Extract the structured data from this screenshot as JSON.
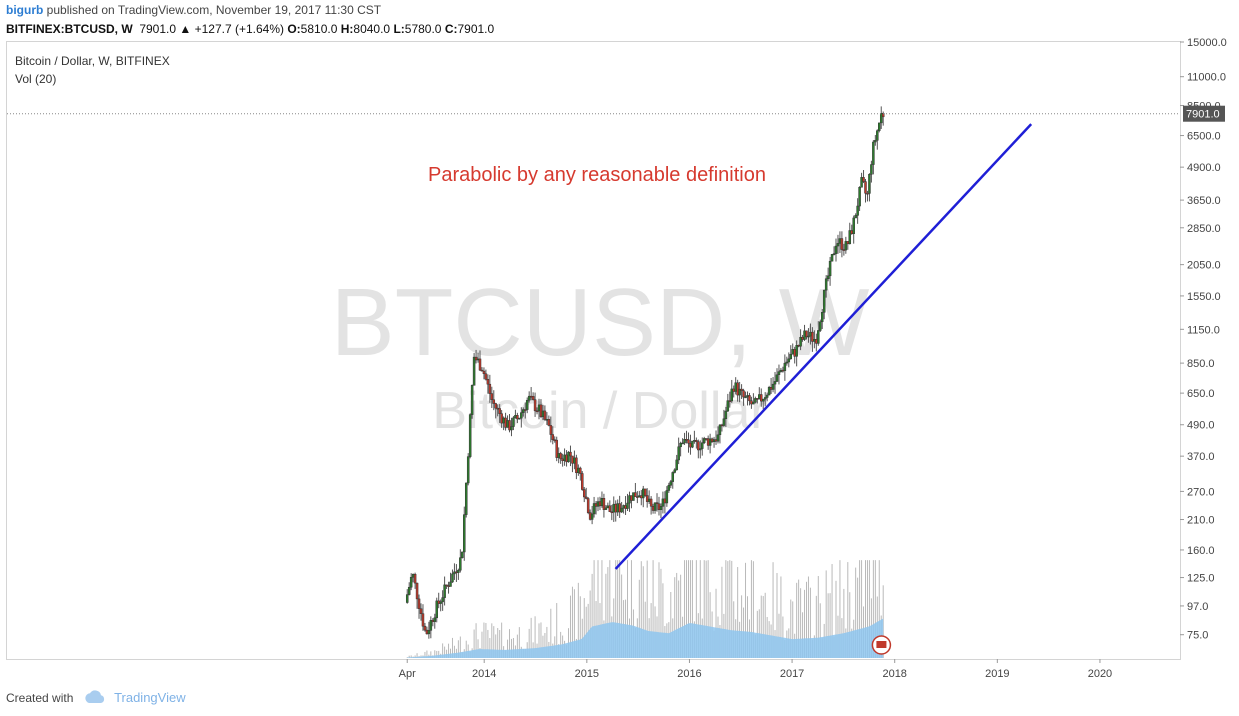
{
  "header": {
    "author": "bigurb",
    "published_text": "published on TradingView.com, November 19, 2017 11:30 CST",
    "symbol_line": "BITFINEX:BTCUSD, W",
    "last_price": "7901.0",
    "change": "▲ +127.7 (+1.64%)",
    "open_label": "O:",
    "open": "5810.0",
    "high_label": "H:",
    "high": "8040.0",
    "low_label": "L:",
    "low": "5780.0",
    "close_label": "C:",
    "close": "7901.0"
  },
  "footer": {
    "created_with": "Created with",
    "brand": "TradingView"
  },
  "colors": {
    "up": "#2d7a2d",
    "down": "#c0392b",
    "volume": "#8ec6ef",
    "trendline": "#1f1fd6",
    "annotation": "#d63a2f",
    "watermark": "#e3e3e3",
    "price_tag": "#555555"
  },
  "chart_data": {
    "type": "candlestick",
    "title": "Bitcoin / Dollar, W, BITFINEX",
    "indicator": "Vol (20)",
    "watermark_symbol": "BTCUSD, W",
    "watermark_name": "Bitcoin / Dollar",
    "annotation": "Parabolic by any reasonable definition",
    "last_price_label": "7901.0",
    "y_scale": "log",
    "ylim": [
      62,
      15000
    ],
    "y_ticks": [
      "15000.0",
      "11000.0",
      "8500.0",
      "6500.0",
      "4900.0",
      "3650.0",
      "2850.0",
      "2050.0",
      "1550.0",
      "1150.0",
      "850.0",
      "650.0",
      "490.0",
      "370.0",
      "270.0",
      "210.0",
      "160.0",
      "125.0",
      "97.0",
      "75.0"
    ],
    "x_ticks": [
      "Apr",
      "2014",
      "2015",
      "2016",
      "2017",
      "2018",
      "2019",
      "2020"
    ],
    "x_tick_dates": [
      2013.25,
      2014.0,
      2015.0,
      2016.0,
      2017.0,
      2018.0,
      2019.0,
      2020.0
    ],
    "xlim": [
      2009.35,
      2020.78
    ],
    "trendline": {
      "x": [
        2015.28,
        2019.33
      ],
      "y": [
        135,
        7200
      ]
    },
    "anchors": [
      [
        2013.25,
        100
      ],
      [
        2013.32,
        130
      ],
      [
        2013.45,
        75
      ],
      [
        2013.55,
        95
      ],
      [
        2013.65,
        115
      ],
      [
        2013.8,
        150
      ],
      [
        2013.88,
        500
      ],
      [
        2013.92,
        900
      ],
      [
        2014.0,
        820
      ],
      [
        2014.1,
        600
      ],
      [
        2014.25,
        480
      ],
      [
        2014.35,
        520
      ],
      [
        2014.45,
        620
      ],
      [
        2014.55,
        560
      ],
      [
        2014.65,
        480
      ],
      [
        2014.75,
        360
      ],
      [
        2014.85,
        380
      ],
      [
        2014.95,
        320
      ],
      [
        2015.05,
        220
      ],
      [
        2015.15,
        250
      ],
      [
        2015.25,
        225
      ],
      [
        2015.35,
        235
      ],
      [
        2015.45,
        260
      ],
      [
        2015.55,
        270
      ],
      [
        2015.65,
        230
      ],
      [
        2015.75,
        235
      ],
      [
        2015.85,
        320
      ],
      [
        2015.95,
        430
      ],
      [
        2016.05,
        400
      ],
      [
        2016.15,
        420
      ],
      [
        2016.3,
        440
      ],
      [
        2016.45,
        700
      ],
      [
        2016.55,
        620
      ],
      [
        2016.65,
        580
      ],
      [
        2016.75,
        640
      ],
      [
        2016.85,
        720
      ],
      [
        2016.95,
        850
      ],
      [
        2017.05,
        950
      ],
      [
        2017.15,
        1100
      ],
      [
        2017.25,
        1050
      ],
      [
        2017.35,
        1700
      ],
      [
        2017.45,
        2550
      ],
      [
        2017.55,
        2400
      ],
      [
        2017.62,
        3000
      ],
      [
        2017.7,
        4300
      ],
      [
        2017.75,
        3700
      ],
      [
        2017.8,
        5600
      ],
      [
        2017.85,
        6800
      ],
      [
        2017.89,
        7901
      ]
    ],
    "volume_profile": [
      [
        2013.25,
        0.01
      ],
      [
        2013.5,
        0.05
      ],
      [
        2013.75,
        0.12
      ],
      [
        2013.95,
        0.2
      ],
      [
        2014.2,
        0.18
      ],
      [
        2014.5,
        0.22
      ],
      [
        2014.75,
        0.3
      ],
      [
        2014.95,
        0.42
      ],
      [
        2015.05,
        0.7
      ],
      [
        2015.25,
        0.8
      ],
      [
        2015.45,
        0.72
      ],
      [
        2015.6,
        0.6
      ],
      [
        2015.8,
        0.55
      ],
      [
        2016.0,
        0.78
      ],
      [
        2016.2,
        0.7
      ],
      [
        2016.4,
        0.62
      ],
      [
        2016.6,
        0.58
      ],
      [
        2016.8,
        0.5
      ],
      [
        2017.0,
        0.42
      ],
      [
        2017.25,
        0.45
      ],
      [
        2017.5,
        0.55
      ],
      [
        2017.75,
        0.7
      ],
      [
        2017.89,
        0.88
      ]
    ]
  }
}
